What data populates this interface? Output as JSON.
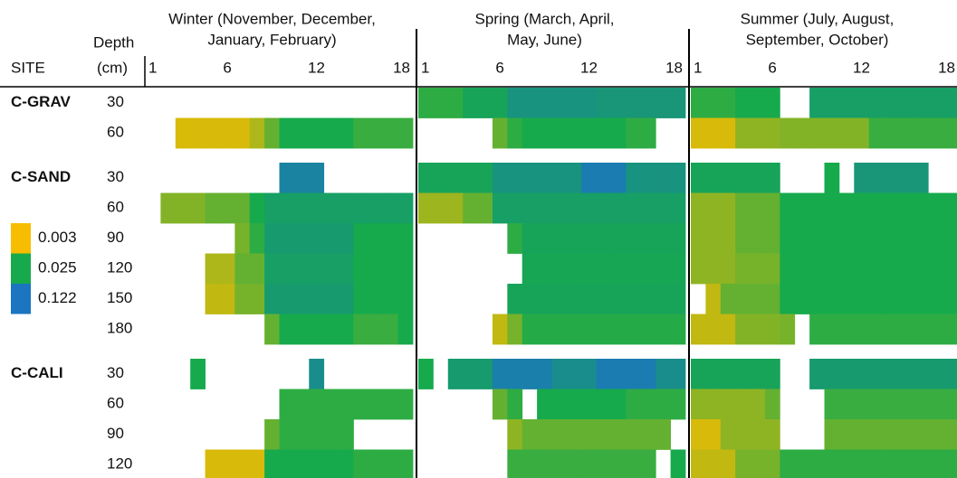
{
  "chart_data": {
    "type": "heatmap",
    "row_header": "SITE",
    "depth_header": [
      "Depth",
      "(cm)"
    ],
    "panels": [
      {
        "title": [
          "Winter (November, December,",
          "January, February)"
        ]
      },
      {
        "title": [
          "Spring (March, April,",
          "May, June)"
        ]
      },
      {
        "title": [
          "Summer (July, August,",
          "September, October)"
        ]
      }
    ],
    "xlim": [
      1,
      18
    ],
    "xticks": [
      1,
      6,
      12,
      18
    ],
    "color_scale": {
      "log": true,
      "stops": [
        {
          "value": 0.003,
          "color": "#f7bd00"
        },
        {
          "value": 0.025,
          "color": "#16aa4c"
        },
        {
          "value": 0.122,
          "color": "#1b75c0"
        }
      ]
    },
    "rows": [
      {
        "site": "C-GRAV",
        "depth": 30,
        "values": [
          [
            null,
            null,
            null,
            null,
            null,
            null,
            null,
            null,
            null,
            null,
            null,
            null,
            null,
            null,
            null,
            null,
            null,
            null
          ],
          [
            0.02,
            0.02,
            0.02,
            0.03,
            0.03,
            0.03,
            0.05,
            0.05,
            0.05,
            0.05,
            0.05,
            0.05,
            0.045,
            0.045,
            0.045,
            0.045,
            0.045,
            0.045
          ],
          [
            0.02,
            0.02,
            0.02,
            0.025,
            0.025,
            0.025,
            null,
            null,
            0.035,
            0.035,
            0.035,
            0.035,
            0.035,
            0.035,
            0.035,
            0.035,
            0.035,
            0.035
          ]
        ]
      },
      {
        "depth": 60,
        "values": [
          [
            null,
            null,
            0.004,
            0.004,
            0.004,
            0.004,
            0.004,
            0.006,
            0.012,
            0.025,
            0.025,
            0.025,
            0.025,
            0.025,
            0.018,
            0.018,
            0.018,
            0.018
          ],
          [
            null,
            null,
            null,
            null,
            null,
            0.012,
            0.02,
            0.025,
            0.025,
            0.025,
            0.025,
            0.025,
            0.025,
            0.025,
            0.02,
            0.02,
            null,
            null
          ],
          [
            0.004,
            0.004,
            0.004,
            0.008,
            0.008,
            0.008,
            0.009,
            0.009,
            0.009,
            0.009,
            0.009,
            0.009,
            0.018,
            0.018,
            0.018,
            0.018,
            0.018,
            0.018
          ]
        ]
      },
      {
        "site": "C-SAND",
        "depth": 30,
        "values": [
          [
            null,
            null,
            null,
            null,
            null,
            null,
            null,
            null,
            null,
            0.08,
            0.08,
            0.08,
            null,
            null,
            null,
            null,
            null,
            null
          ],
          [
            0.03,
            0.03,
            0.03,
            0.03,
            0.03,
            0.05,
            0.05,
            0.05,
            0.05,
            0.05,
            0.05,
            0.1,
            0.1,
            0.1,
            0.05,
            0.05,
            0.05,
            0.05
          ],
          [
            0.03,
            0.03,
            0.03,
            0.03,
            0.03,
            0.03,
            null,
            null,
            null,
            0.025,
            null,
            0.045,
            0.045,
            0.045,
            0.045,
            0.045,
            null,
            null
          ]
        ]
      },
      {
        "depth": 60,
        "values": [
          [
            null,
            0.009,
            0.009,
            0.009,
            0.012,
            0.012,
            0.012,
            0.025,
            0.035,
            0.035,
            0.035,
            0.035,
            0.035,
            0.035,
            0.035,
            0.035,
            0.035,
            0.035
          ],
          [
            0.007,
            0.007,
            0.007,
            0.012,
            0.012,
            0.035,
            0.035,
            0.035,
            0.035,
            0.035,
            0.035,
            0.035,
            0.035,
            0.035,
            0.035,
            0.035,
            0.035,
            0.035
          ],
          [
            0.008,
            0.008,
            0.008,
            0.012,
            0.012,
            0.012,
            0.025,
            0.025,
            0.025,
            0.025,
            0.025,
            0.025,
            0.025,
            0.025,
            0.025,
            0.025,
            0.025,
            0.025
          ]
        ]
      },
      {
        "depth": 90,
        "values": [
          [
            null,
            null,
            null,
            null,
            null,
            null,
            0.01,
            0.02,
            0.04,
            0.04,
            0.04,
            0.04,
            0.04,
            0.04,
            0.025,
            0.025,
            0.025,
            0.025
          ],
          [
            null,
            null,
            null,
            null,
            null,
            null,
            0.02,
            0.03,
            0.03,
            0.03,
            0.03,
            0.03,
            0.03,
            0.03,
            0.03,
            0.03,
            0.03,
            0.03
          ],
          [
            0.008,
            0.008,
            0.008,
            0.012,
            0.012,
            0.012,
            0.025,
            0.025,
            0.025,
            0.025,
            0.025,
            0.025,
            0.025,
            0.025,
            0.025,
            0.025,
            0.025,
            0.025
          ]
        ]
      },
      {
        "depth": 120,
        "values": [
          [
            null,
            null,
            null,
            null,
            0.006,
            0.006,
            0.012,
            0.012,
            0.035,
            0.035,
            0.035,
            0.035,
            0.035,
            0.035,
            0.025,
            0.025,
            0.025,
            0.025
          ],
          [
            null,
            null,
            null,
            null,
            null,
            null,
            null,
            0.028,
            0.028,
            0.028,
            0.028,
            0.028,
            0.028,
            0.028,
            0.028,
            0.028,
            0.028,
            0.028
          ],
          [
            0.008,
            0.008,
            0.008,
            0.01,
            0.01,
            0.01,
            0.025,
            0.025,
            0.025,
            0.025,
            0.025,
            0.025,
            0.025,
            0.025,
            0.025,
            0.025,
            0.025,
            0.025
          ]
        ]
      },
      {
        "depth": 150,
        "values": [
          [
            null,
            null,
            null,
            null,
            0.005,
            0.005,
            0.01,
            0.01,
            0.04,
            0.04,
            0.04,
            0.04,
            0.04,
            0.04,
            0.025,
            0.025,
            0.025,
            0.025
          ],
          [
            null,
            null,
            null,
            null,
            null,
            null,
            0.03,
            0.03,
            0.03,
            0.03,
            0.03,
            0.03,
            0.03,
            0.03,
            0.03,
            0.03,
            0.03,
            0.03
          ],
          [
            null,
            0.005,
            0.012,
            0.012,
            0.012,
            0.012,
            0.025,
            0.025,
            0.025,
            0.025,
            0.025,
            0.025,
            0.025,
            0.025,
            0.025,
            0.025,
            0.025,
            0.025
          ]
        ]
      },
      {
        "depth": 180,
        "values": [
          [
            null,
            null,
            null,
            null,
            null,
            null,
            null,
            null,
            0.012,
            0.025,
            0.025,
            0.025,
            0.025,
            0.025,
            0.018,
            0.018,
            0.018,
            0.025
          ],
          [
            null,
            null,
            null,
            null,
            null,
            0.005,
            0.01,
            0.022,
            0.022,
            0.022,
            0.022,
            0.022,
            0.022,
            0.022,
            0.022,
            0.022,
            0.022,
            0.022
          ],
          [
            0.005,
            0.005,
            0.005,
            0.009,
            0.009,
            0.009,
            0.01,
            null,
            0.02,
            0.02,
            0.02,
            0.02,
            0.02,
            0.02,
            0.02,
            0.02,
            0.02,
            0.02
          ]
        ]
      },
      {
        "site": "C-CALI",
        "depth": 30,
        "values": [
          [
            null,
            null,
            null,
            0.025,
            null,
            null,
            null,
            null,
            null,
            null,
            null,
            0.06,
            null,
            null,
            null,
            null,
            null,
            null
          ],
          [
            0.025,
            null,
            0.04,
            0.04,
            0.04,
            0.09,
            0.09,
            0.09,
            0.09,
            0.06,
            0.06,
            0.06,
            0.1,
            0.1,
            0.1,
            0.1,
            0.06,
            0.06
          ],
          [
            0.03,
            0.03,
            0.03,
            0.03,
            0.03,
            0.03,
            null,
            null,
            0.04,
            0.04,
            0.04,
            0.04,
            0.04,
            0.04,
            0.04,
            0.04,
            0.04,
            0.04
          ]
        ]
      },
      {
        "depth": 60,
        "values": [
          [
            null,
            null,
            null,
            null,
            null,
            null,
            null,
            null,
            null,
            0.02,
            0.02,
            0.02,
            0.02,
            0.02,
            0.02,
            0.02,
            0.02,
            0.02
          ],
          [
            null,
            null,
            null,
            null,
            null,
            0.012,
            0.02,
            null,
            0.025,
            0.025,
            0.025,
            0.025,
            0.025,
            0.025,
            0.02,
            0.02,
            0.02,
            0.02
          ],
          [
            0.008,
            0.008,
            0.008,
            0.008,
            0.008,
            0.012,
            null,
            null,
            null,
            0.018,
            0.018,
            0.018,
            0.018,
            0.018,
            0.018,
            0.018,
            0.018,
            0.018
          ]
        ]
      },
      {
        "depth": 90,
        "values": [
          [
            null,
            null,
            null,
            null,
            null,
            null,
            null,
            null,
            0.012,
            0.02,
            0.02,
            0.02,
            0.02,
            0.02,
            null,
            null,
            null,
            null
          ],
          [
            null,
            null,
            null,
            null,
            null,
            null,
            0.008,
            0.012,
            0.012,
            0.012,
            0.012,
            0.012,
            0.012,
            0.012,
            0.012,
            0.012,
            0.012,
            null
          ],
          [
            0.004,
            0.004,
            0.008,
            0.008,
            0.008,
            0.008,
            null,
            null,
            null,
            0.012,
            0.012,
            0.012,
            0.012,
            0.012,
            0.012,
            0.012,
            0.012,
            0.012
          ]
        ]
      },
      {
        "depth": 120,
        "values": [
          [
            null,
            null,
            null,
            null,
            0.004,
            0.004,
            0.004,
            0.004,
            0.025,
            0.025,
            0.025,
            0.025,
            0.025,
            0.025,
            0.02,
            0.02,
            0.02,
            0.02
          ],
          [
            null,
            null,
            null,
            null,
            null,
            null,
            0.018,
            0.018,
            0.018,
            0.018,
            0.018,
            0.018,
            0.018,
            0.018,
            0.018,
            0.018,
            null,
            0.025
          ],
          [
            0.005,
            0.005,
            0.005,
            0.01,
            0.01,
            0.01,
            0.02,
            0.02,
            0.02,
            0.02,
            0.02,
            0.02,
            0.02,
            0.02,
            0.02,
            0.02,
            0.02,
            0.02
          ]
        ]
      }
    ]
  }
}
